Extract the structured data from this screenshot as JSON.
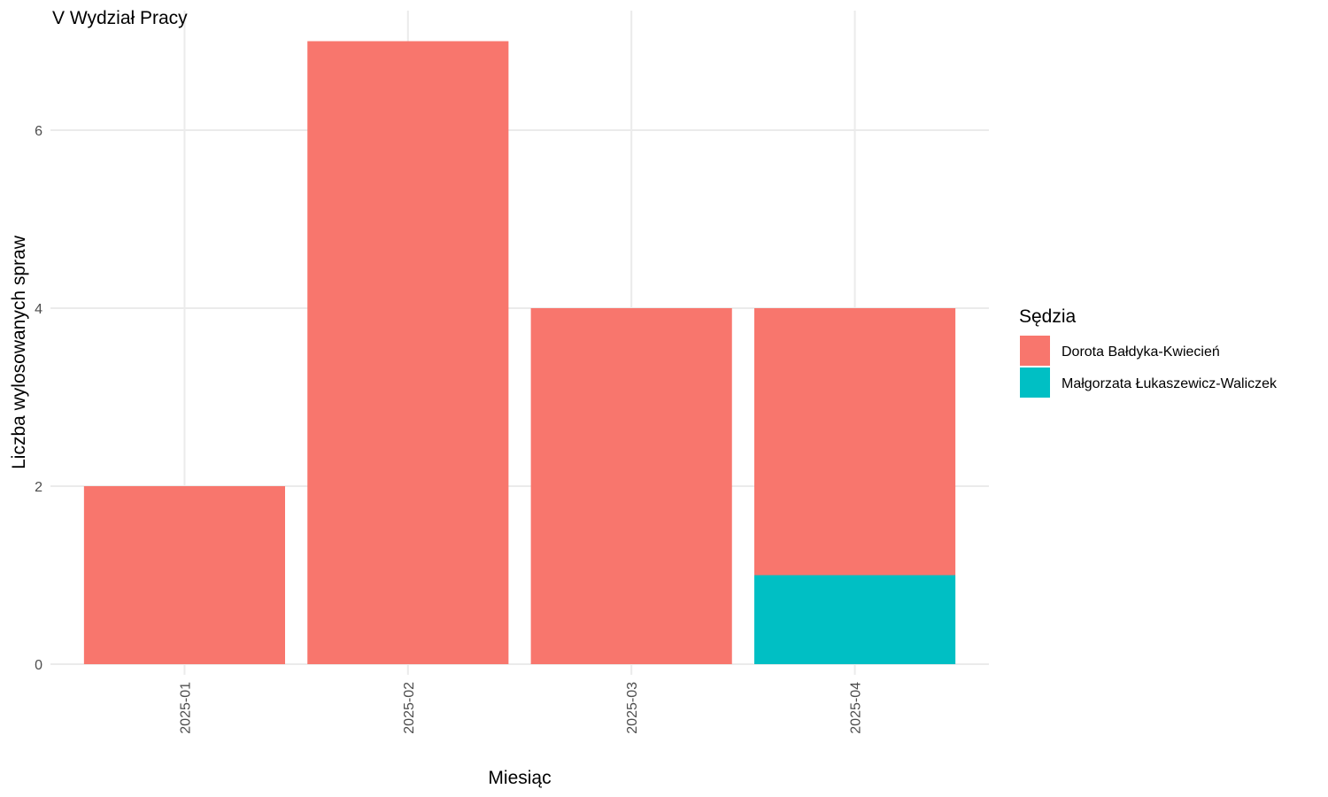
{
  "chart_data": {
    "type": "bar",
    "stacked": true,
    "title": "V Wydział Pracy",
    "xlabel": "Miesiąc",
    "ylabel": "Liczba wylosowanych spraw",
    "categories": [
      "2025-01",
      "2025-02",
      "2025-03",
      "2025-04"
    ],
    "series": [
      {
        "name": "Małgorzata Łukaszewicz-Waliczek",
        "color": "#00BFC4",
        "values": [
          0,
          0,
          0,
          1
        ]
      },
      {
        "name": "Dorota Bałdyka-Kwiecień",
        "color": "#F8766D",
        "values": [
          2,
          7,
          4,
          3
        ]
      }
    ],
    "ylim": [
      0,
      7
    ],
    "yticks": [
      0,
      2,
      4,
      6
    ],
    "grid": true,
    "legend": {
      "title": "Sędzia",
      "placement": "right",
      "entries": [
        "Dorota Bałdyka-Kwiecień",
        "Małgorzata Łukaszewicz-Waliczek"
      ]
    }
  }
}
